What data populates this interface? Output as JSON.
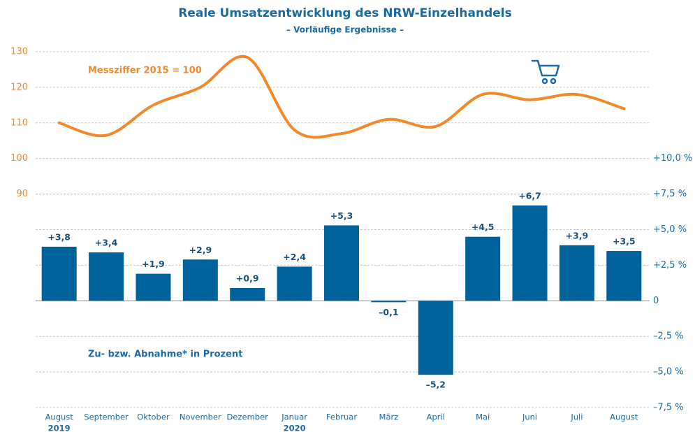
{
  "chart_data": {
    "type": "line_bar",
    "title": "Reale Umsatzentwicklung des NRW-Einzelhandels",
    "subtitle": "– Vorläufige Ergebnisse –",
    "categories": [
      "August",
      "September",
      "Oktober",
      "November",
      "Dezember",
      "Januar",
      "Februar",
      "März",
      "April",
      "Mai",
      "Juni",
      "Juli",
      "August"
    ],
    "year_labels": [
      "2019",
      null,
      null,
      null,
      null,
      "2020",
      null,
      null,
      null,
      null,
      null,
      null,
      null
    ],
    "series": [
      {
        "name": "Messziffer 2015 = 100",
        "type": "line",
        "color": "#f0892b",
        "axis": "y",
        "values": [
          110,
          106.5,
          115,
          120,
          128.4,
          108,
          107,
          111,
          109,
          118,
          116.5,
          118,
          114
        ]
      },
      {
        "name": "Zu- bzw. Abnahme* in Prozent",
        "type": "bar",
        "color": "#00629b",
        "axis": "y2",
        "values": [
          3.8,
          3.4,
          1.9,
          2.9,
          0.9,
          2.4,
          5.3,
          -0.1,
          -5.2,
          4.5,
          6.7,
          3.9,
          3.5
        ],
        "value_labels": [
          "+3,8",
          "+3,4",
          "+1,9",
          "+2,9",
          "+0,9",
          "+2,4",
          "+5,3",
          "–0,1",
          "–5,2",
          "+4,5",
          "+6,7",
          "+3,9",
          "+3,5"
        ]
      }
    ],
    "ylim": [
      30,
      130
    ],
    "yticks": [
      90,
      100,
      110,
      120,
      130
    ],
    "y2lim": [
      -7.5,
      17.5
    ],
    "y2ticks": [
      {
        "value": -7.5,
        "label": "–7,5 %"
      },
      {
        "value": -5,
        "label": "–5,0 %"
      },
      {
        "value": -2.5,
        "label": "–2,5 %"
      },
      0,
      {
        "value": 2.5,
        "label": "+2,5 %"
      },
      {
        "value": 5,
        "label": "+5,0 %"
      },
      {
        "value": 7.5,
        "label": "+7,5 %"
      },
      {
        "value": 10,
        "label": "+10,0 %"
      }
    ],
    "grid": true
  }
}
